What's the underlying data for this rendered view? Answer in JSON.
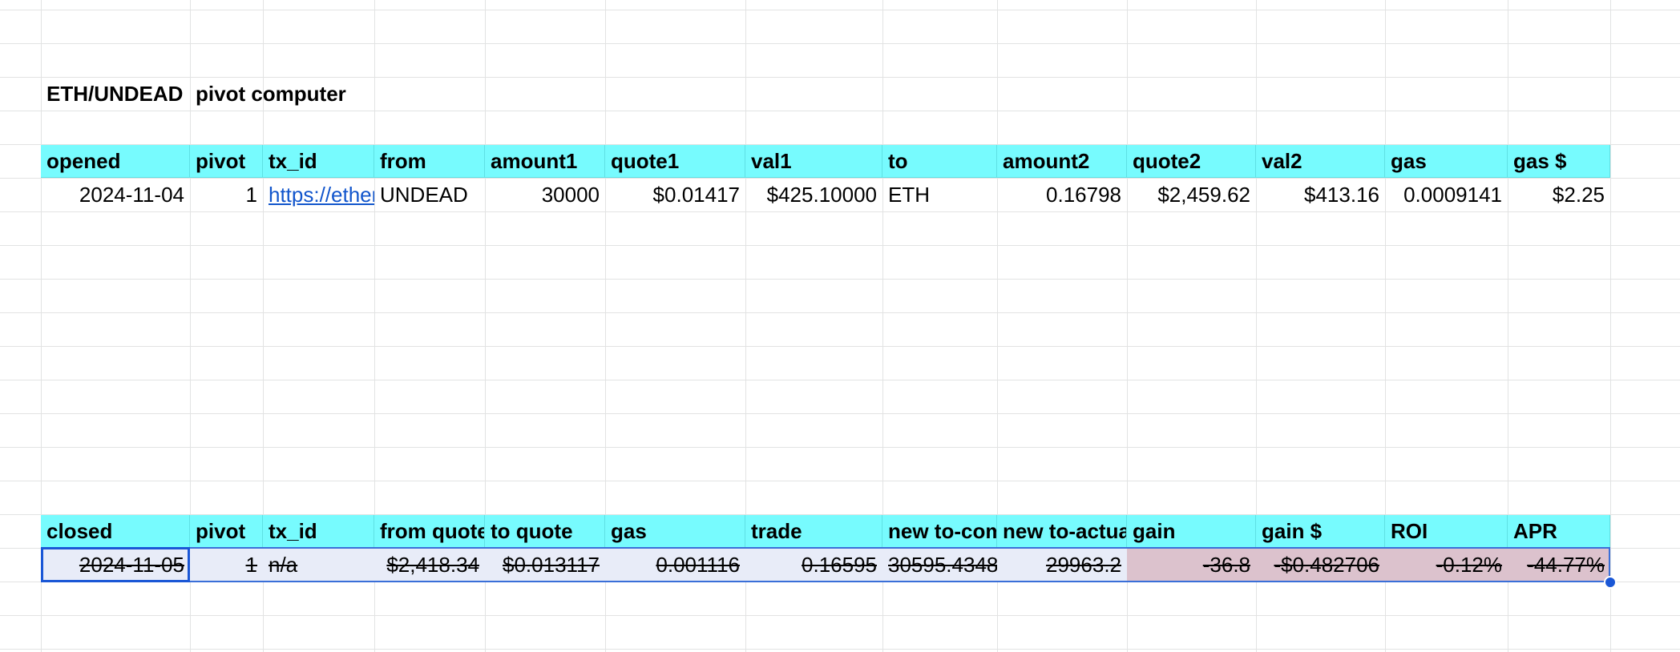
{
  "title_row": {
    "a": "ETH/UNDEAD",
    "b": "pivot computer"
  },
  "opened_table": {
    "headers": [
      "opened",
      "pivot",
      "tx_id",
      "from",
      "amount1",
      "quote1",
      "val1",
      "to",
      "amount2",
      "quote2",
      "val2",
      "gas",
      "gas $"
    ],
    "row": [
      "2024-11-04",
      "1",
      "https://etherscan.io/tx/",
      "UNDEAD",
      "30000",
      "$0.01417",
      "$425.10000",
      "ETH",
      "0.16798",
      "$2,459.62",
      "$413.16",
      "0.0009141",
      "$2.25"
    ]
  },
  "closed_table": {
    "headers": [
      "closed",
      "pivot",
      "tx_id",
      "from quote",
      "to quote",
      "gas",
      "trade",
      "new to-computed",
      "new to-actual",
      "gain",
      "gain $",
      "ROI",
      "APR"
    ],
    "row": [
      "2024-11-05",
      "1",
      "n/a",
      "$2,418.34",
      "$0.013117",
      "0.001116",
      "0.16595",
      "30595.4348",
      "29963.2",
      "-36.8",
      "-$0.482706",
      "-0.12%",
      "-44.77%"
    ]
  },
  "colors": {
    "header_bg": "#77fbfe",
    "selection_bg": "#e8ecf8",
    "negative_bg": "#dcc2cd",
    "link": "#1155cc",
    "selection_border": "#1a57d6"
  },
  "icons": {
    "fill_handle": "circle-dot"
  }
}
